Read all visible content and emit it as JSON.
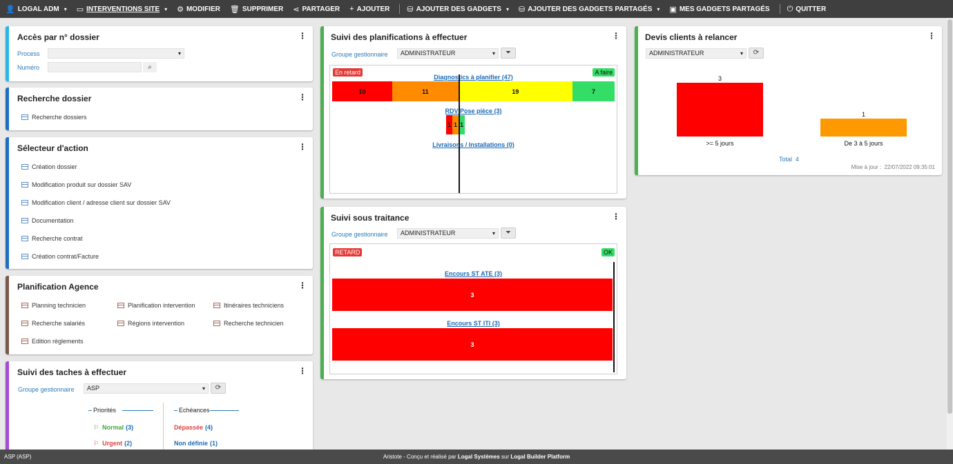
{
  "topbar": {
    "items": [
      {
        "icon": "user-icon",
        "glyph": "👤",
        "label": "LOGAL ADM",
        "caret": true
      },
      {
        "icon": "monitor-icon",
        "glyph": "▭",
        "label": "INTERVENTIONS SITE",
        "caret": true
      },
      {
        "icon": "gear-icon",
        "glyph": "⚙",
        "label": "MODIFIER"
      },
      {
        "icon": "trash-icon",
        "glyph": "🗑",
        "label": "SUPPRIMER"
      },
      {
        "icon": "share-icon",
        "glyph": "⋖",
        "label": "PARTAGER"
      },
      {
        "icon": "plus-icon",
        "glyph": "+",
        "label": "AJOUTER"
      },
      {
        "icon": "gadgets-icon",
        "glyph": "⛁",
        "label": "AJOUTER DES GADGETS",
        "caret": true
      },
      {
        "icon": "shared-gadgets-icon",
        "glyph": "⛁",
        "label": "AJOUTER DES GADGETS PARTAGÉS",
        "caret": true
      },
      {
        "icon": "briefcase-icon",
        "glyph": "▣",
        "label": "MES GADGETS PARTAGÉS"
      },
      {
        "icon": "power-icon",
        "glyph": "⏻",
        "label": "QUITTER"
      }
    ]
  },
  "acces": {
    "title": "Accès par n° dossier",
    "process_label": "Process",
    "process_value": "",
    "numero_label": "Numéro",
    "numero_value": ""
  },
  "recherche": {
    "title": "Recherche dossier",
    "items": [
      "Recherche dossiers"
    ]
  },
  "selecteur": {
    "title": "Sélecteur d'action",
    "items": [
      "Création dossier",
      "Modification produit sur dossier SAV",
      "Modification client / adresse client sur dossier SAV",
      "Documentation",
      "Recherche contrat",
      "Création contrat/Facture"
    ]
  },
  "planif_agence": {
    "title": "Planification Agence",
    "items": [
      "Planning technicien",
      "Planification intervention",
      "Itinéraires techniciens",
      "Recherche salariés",
      "Régions intervention",
      "Recherche technicien",
      "Edition règlements"
    ]
  },
  "taches": {
    "title": "Suivi des taches à effectuer",
    "groupe_label": "Groupe gestionnaire",
    "groupe_value": "ASP",
    "priorites_title": "Priorités",
    "echeances_title": "Echéances",
    "priorites": [
      {
        "label": "Normal",
        "count": "(3)",
        "color": "#3aaa3a"
      },
      {
        "label": "Urgent",
        "count": "(2)",
        "color": "#e04040"
      }
    ],
    "echeances": [
      {
        "label": "Dépassée",
        "count": "(4)",
        "color": "#e04040"
      },
      {
        "label": "Non définie",
        "count": "(1)",
        "color": "#1a6ab5"
      }
    ]
  },
  "planifications": {
    "title": "Suivi des planifications à effectuer",
    "groupe_label": "Groupe gestionnaire",
    "groupe_value": "ADMINISTRATEUR",
    "badge_left": "En retard",
    "badge_right": "A faire",
    "bars": [
      {
        "label": "Diagnostics à planifier (47)",
        "segments": [
          {
            "value": "10",
            "color": "#ff0000"
          },
          {
            "value": "11",
            "color": "#ff8c00"
          },
          {
            "value": "19",
            "color": "#ffff00"
          },
          {
            "value": "7",
            "color": "#33dd66"
          }
        ]
      },
      {
        "label": "RDV Pose pièce (3)",
        "segments": [
          {
            "value": "1",
            "color": "#ff0000"
          },
          {
            "value": "1",
            "color": "#ff8c00"
          },
          {
            "value": "1",
            "color": "#33dd66"
          }
        ]
      },
      {
        "label": "Livraisons / Installations (0)",
        "segments": []
      }
    ]
  },
  "sous_traitance": {
    "title": "Suivi sous traitance",
    "groupe_label": "Groupe gestionnaire",
    "groupe_value": "ADMINISTRATEUR",
    "badge_left": "RETARD",
    "badge_right": "OK",
    "bars": [
      {
        "label": "Encours ST ATE (3)",
        "value": "3"
      },
      {
        "label": "Encours ST ITI (3)",
        "value": "3"
      }
    ]
  },
  "devis": {
    "title": "Devis clients à relancer",
    "groupe_value": "ADMINISTRATEUR",
    "total_label": "Total",
    "total_value": "4",
    "maj_label": "Mise à jour :",
    "maj_value": "22/07/2022 09:35:01",
    "chart_data": {
      "type": "bar",
      "categories": [
        ">= 5 jours",
        "De 3 à 5 jours"
      ],
      "values": [
        3,
        1
      ],
      "colors": [
        "#ff0000",
        "#ff9900"
      ],
      "ylim": [
        0,
        3
      ]
    }
  },
  "footer": {
    "left": "ASP (ASP)",
    "center_1": "Aristote - Conçu et réalisé par",
    "center_2": "Logal Systèmes",
    "center_3": "sur",
    "center_4": "Logal Builder Platform"
  },
  "colors": {
    "acces": "#29b6e6",
    "recherche": "#1e6fc0",
    "selecteur": "#1e6fc0",
    "planif_agence": "#7a5a4a",
    "taches": "#a64bd6",
    "planifications": "#4caf50",
    "sous_traitance": "#4caf50",
    "devis": "#4caf50"
  }
}
